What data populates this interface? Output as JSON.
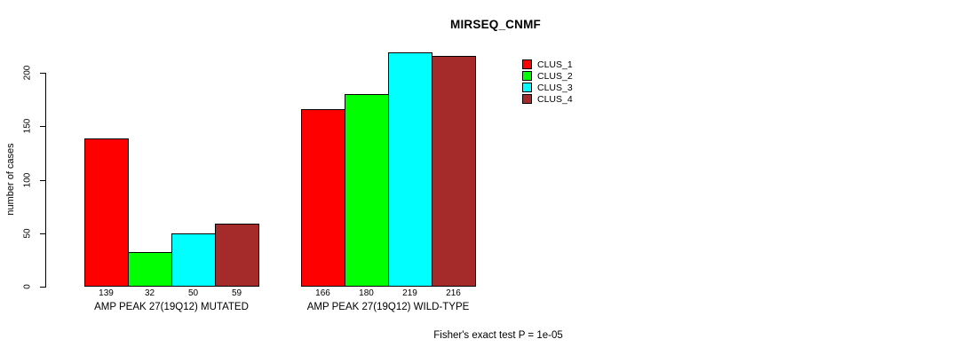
{
  "chart_data": {
    "type": "bar",
    "title": "MIRSEQ_CNMF",
    "ylabel": "number of cases",
    "xlabel": "",
    "categories": [
      "AMP PEAK 27(19Q12) MUTATED",
      "AMP PEAK 27(19Q12) WILD-TYPE"
    ],
    "series": [
      {
        "name": "CLUS_1",
        "color": "#FF0000",
        "values": [
          139,
          166
        ]
      },
      {
        "name": "CLUS_2",
        "color": "#00FF00",
        "values": [
          32,
          180
        ]
      },
      {
        "name": "CLUS_3",
        "color": "#00FFFF",
        "values": [
          50,
          219
        ]
      },
      {
        "name": "CLUS_4",
        "color": "#A52A2A",
        "values": [
          59,
          216
        ]
      }
    ],
    "yticks": [
      0,
      50,
      100,
      150,
      200
    ],
    "ylim": [
      0,
      220
    ],
    "grid": false,
    "legend_position": "top-right",
    "annotation": "Fisher's exact test P = 1e-05"
  }
}
